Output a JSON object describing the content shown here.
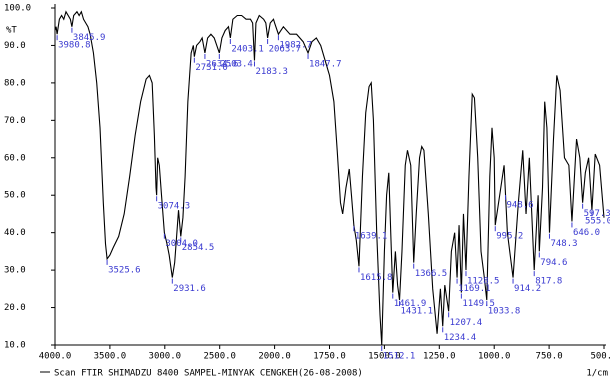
{
  "chart_data": {
    "type": "line",
    "y_label": "%T",
    "x_label": "1/cm",
    "series": [
      {
        "name": "Scan FTIR SHIMADZU 8400 SAMPEL-MINYAK CENGKEH(26-08-2008)",
        "color": "#000000"
      }
    ],
    "x": [
      4000,
      3990,
      3980.8,
      3960,
      3940,
      3920,
      3900,
      3880,
      3860,
      3845.9,
      3830,
      3800,
      3780,
      3760,
      3740,
      3720,
      3700,
      3680,
      3650,
      3620,
      3590,
      3560,
      3540,
      3525.6,
      3500,
      3470,
      3420,
      3370,
      3320,
      3270,
      3220,
      3170,
      3140,
      3115,
      3095,
      3080,
      3074.3,
      3065,
      3050,
      3030,
      3004,
      2980,
      2960,
      2931.6,
      2910,
      2890,
      2875,
      2854.5,
      2835,
      2815,
      2790,
      2760,
      2740,
      2731,
      2710,
      2680,
      2660,
      2634.6,
      2610,
      2580,
      2550,
      2503.4,
      2480,
      2450,
      2420,
      2403.1,
      2380,
      2340,
      2300,
      2260,
      2220,
      2200,
      2183.3,
      2170,
      2140,
      2100,
      2080,
      2063.7,
      2040,
      2010,
      2000,
      1982.7,
      1960,
      1930,
      1900,
      1870,
      1847.7,
      1830,
      1810,
      1790,
      1770,
      1750,
      1730,
      1715,
      1700,
      1690,
      1675,
      1660,
      1650,
      1639.1,
      1628,
      1615.8,
      1600,
      1585,
      1570,
      1560,
      1550,
      1535,
      1520,
      1512.1,
      1500,
      1490,
      1480,
      1470,
      1461.9,
      1450,
      1440,
      1431.1,
      1420,
      1405,
      1395,
      1380,
      1366.5,
      1355,
      1340,
      1330,
      1320,
      1300,
      1280,
      1260,
      1245,
      1234.4,
      1225,
      1207.4,
      1195,
      1180,
      1169.1,
      1160,
      1149.5,
      1140,
      1128.5,
      1115,
      1100,
      1090,
      1075,
      1060,
      1045,
      1033.8,
      1020,
      1010,
      1000,
      995.2,
      975,
      955,
      940,
      914.2,
      890,
      870,
      855,
      840,
      817.8,
      800,
      794.6,
      780,
      770,
      760,
      748.3,
      730,
      715,
      700,
      680,
      660,
      646,
      625,
      610,
      597.3,
      585,
      570,
      555,
      540,
      520,
      500
    ],
    "values": [
      94,
      95,
      93,
      97,
      98,
      97,
      99,
      98,
      97,
      95,
      98,
      99,
      98,
      99,
      97,
      96,
      95,
      93,
      88,
      80,
      68,
      48,
      37,
      33,
      34,
      36,
      39,
      45,
      55,
      66,
      75,
      81,
      82,
      80,
      66,
      52,
      50,
      60,
      58,
      50,
      40,
      37,
      34,
      28,
      32,
      40,
      46,
      39,
      44,
      55,
      75,
      88,
      90,
      87,
      90,
      91,
      92,
      88,
      92,
      93,
      92,
      88,
      92,
      94,
      95,
      92,
      97,
      98,
      98,
      97,
      97,
      96,
      86,
      96,
      98,
      97,
      96,
      92,
      96,
      97,
      96,
      93,
      95,
      93,
      93,
      91,
      88,
      91,
      92,
      90,
      86,
      82,
      75,
      62,
      48,
      45,
      52,
      57,
      50,
      42,
      38,
      31,
      55,
      72,
      79,
      80,
      70,
      40,
      18,
      10,
      35,
      50,
      56,
      38,
      24,
      35,
      26,
      22,
      35,
      58,
      62,
      58,
      32,
      45,
      60,
      63,
      62,
      45,
      25,
      13,
      25,
      15,
      26,
      19,
      35,
      40,
      28,
      42,
      24,
      45,
      30,
      55,
      77,
      76,
      60,
      35,
      28,
      22,
      55,
      68,
      60,
      42,
      50,
      58,
      40,
      28,
      48,
      62,
      45,
      60,
      30,
      50,
      35,
      52,
      75,
      68,
      40,
      65,
      82,
      78,
      60,
      58,
      43,
      65,
      60,
      48,
      56,
      60,
      46,
      61,
      58,
      44
    ],
    "xlim": [
      4000,
      500
    ],
    "ylim": [
      10,
      100
    ],
    "xticks": [
      {
        "value": 4000,
        "label": "4000.0"
      },
      {
        "value": 3500,
        "label": "3500.0"
      },
      {
        "value": 3000,
        "label": "3000.0"
      },
      {
        "value": 2500,
        "label": "2500.0"
      },
      {
        "value": 2000,
        "label": "2000.0"
      },
      {
        "value": 1750,
        "label": "1750.0"
      },
      {
        "value": 1500,
        "label": "1500.0"
      },
      {
        "value": 1250,
        "label": "1250.0"
      },
      {
        "value": 1000,
        "label": "1000.0"
      },
      {
        "value": 750,
        "label": "750.0"
      },
      {
        "value": 500,
        "label": "500.0"
      }
    ],
    "yticks": [
      {
        "value": 10,
        "label": "10.0"
      },
      {
        "value": 20,
        "label": "20.0"
      },
      {
        "value": 30,
        "label": "30.0"
      },
      {
        "value": 40,
        "label": "40.0"
      },
      {
        "value": 50,
        "label": "50.0"
      },
      {
        "value": 60,
        "label": "60.0"
      },
      {
        "value": 70,
        "label": "70.0"
      },
      {
        "value": 80,
        "label": "80.0"
      },
      {
        "value": 90,
        "label": "90.0"
      },
      {
        "value": 100,
        "label": "100.0"
      }
    ],
    "annotation_color": "#3a3ad0",
    "annotations": [
      {
        "x": 3980.8,
        "label": "3980.8"
      },
      {
        "x": 3845.9,
        "label": "3845.9"
      },
      {
        "x": 3525.6,
        "label": "3525.6"
      },
      {
        "x": 3074.3,
        "label": "3074.3"
      },
      {
        "x": 3004,
        "label": "3004.0"
      },
      {
        "x": 2931.6,
        "label": "2931.6"
      },
      {
        "x": 2854.5,
        "label": "2854.5"
      },
      {
        "x": 2731,
        "label": "2731.0"
      },
      {
        "x": 2634.6,
        "label": "2634.6"
      },
      {
        "x": 2503.4,
        "label": "2503.4"
      },
      {
        "x": 2403.1,
        "label": "2403.1"
      },
      {
        "x": 2183.3,
        "label": "2183.3"
      },
      {
        "x": 2063.7,
        "label": "2063.7"
      },
      {
        "x": 1982.7,
        "label": "1982.7"
      },
      {
        "x": 1847.7,
        "label": "1847.7"
      },
      {
        "x": 1639.1,
        "label": "1639.1"
      },
      {
        "x": 1615.8,
        "label": "1615.8"
      },
      {
        "x": 1512.1,
        "label": "1512.1"
      },
      {
        "x": 1461.9,
        "label": "1461.9"
      },
      {
        "x": 1431.1,
        "label": "1431.1"
      },
      {
        "x": 1366.5,
        "label": "1366.5"
      },
      {
        "x": 1234.4,
        "label": "1234.4"
      },
      {
        "x": 1207.4,
        "label": "1207.4"
      },
      {
        "x": 1169.1,
        "label": "1169.1"
      },
      {
        "x": 1149.5,
        "label": "1149.5"
      },
      {
        "x": 1128.5,
        "label": "1128.5"
      },
      {
        "x": 1033.8,
        "label": "1033.8"
      },
      {
        "x": 995.2,
        "label": "995.2"
      },
      {
        "x": 948.6,
        "label": "948.6"
      },
      {
        "x": 914.2,
        "label": "914.2"
      },
      {
        "x": 817.8,
        "label": "817.8"
      },
      {
        "x": 794.6,
        "label": "794.6"
      },
      {
        "x": 748.3,
        "label": "748.3"
      },
      {
        "x": 646,
        "label": "646.0"
      },
      {
        "x": 597.3,
        "label": "597.3"
      },
      {
        "x": 555,
        "label": "555.0"
      }
    ]
  }
}
